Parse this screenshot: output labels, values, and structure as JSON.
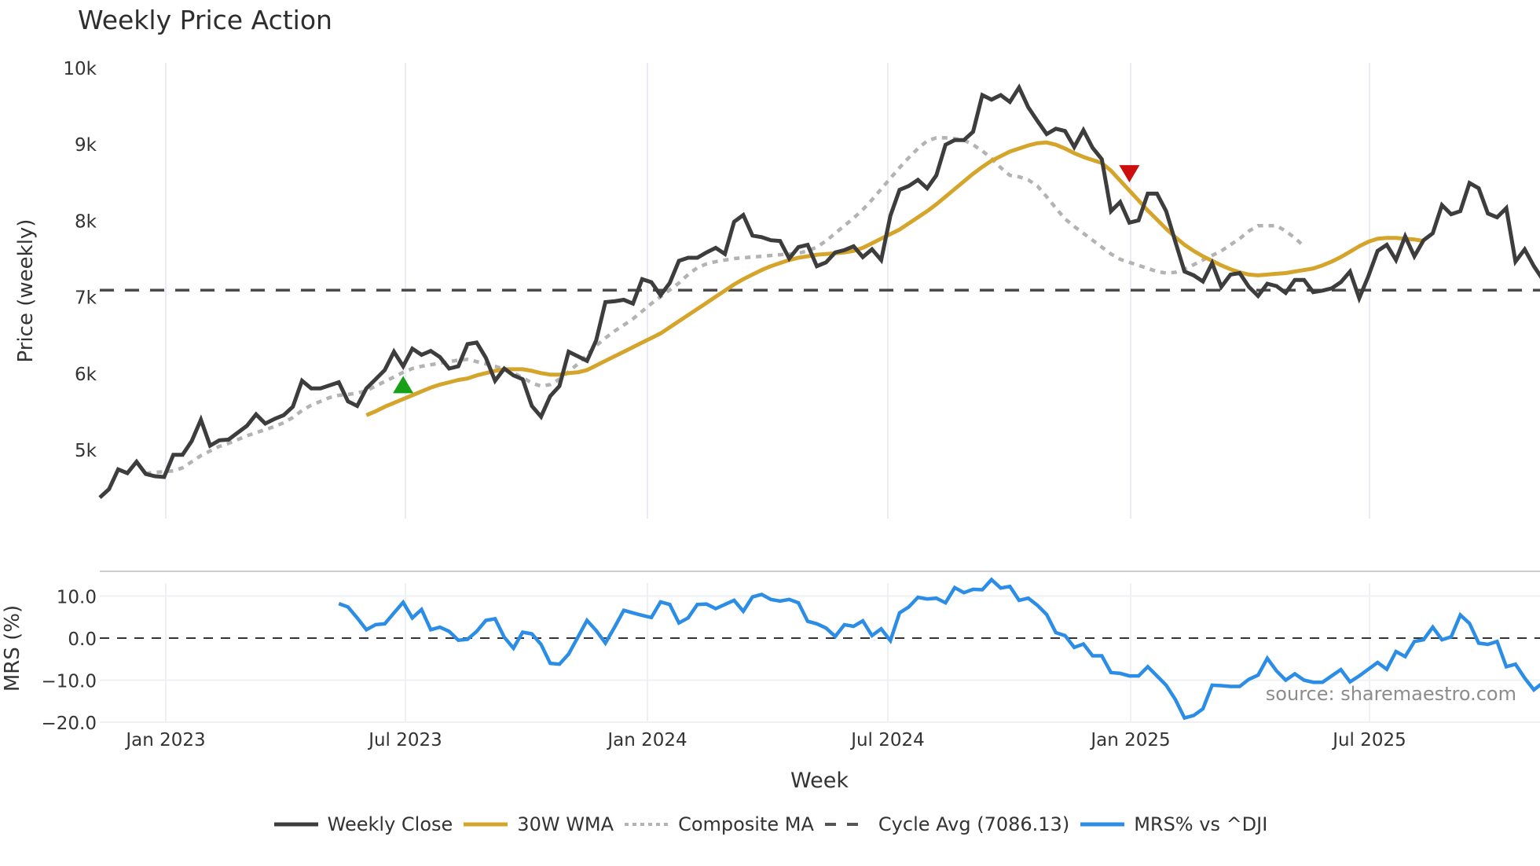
{
  "title": "Weekly Price Action",
  "price_panel": {
    "ylabel": "Price (weekly)",
    "yticks": [
      "10k",
      "9k",
      "8k",
      "7k",
      "6k",
      "5k"
    ],
    "ytick_values": [
      10000,
      9000,
      8000,
      7000,
      6000,
      5000
    ]
  },
  "mrs_panel": {
    "ylabel": "MRS (%)",
    "yticks": [
      "10.0",
      "0.0",
      "−10.0",
      "−20.0"
    ],
    "ytick_values": [
      10,
      0,
      -10,
      -20
    ]
  },
  "xaxis": {
    "label": "Week",
    "ticks": [
      "Jan 2023",
      "Jul 2023",
      "Jan 2024",
      "Jul 2024",
      "Jan 2025",
      "Jul 2025"
    ]
  },
  "watermark": "source: sharemaestro.com",
  "legend": [
    {
      "label": "Weekly Close",
      "color": "#3d3d3d",
      "style": "solid"
    },
    {
      "label": "30W WMA",
      "color": "#d4a52a",
      "style": "solid"
    },
    {
      "label": "Composite MA",
      "color": "#b3b3b3",
      "style": "dotted"
    },
    {
      "label": "Cycle Avg (7086.13)",
      "color": "#555555",
      "style": "dashed"
    },
    {
      "label": "MRS% vs ^DJI",
      "color": "#2b8de6",
      "style": "solid"
    }
  ],
  "colors": {
    "close": "#3d3d3d",
    "wma": "#d4a52a",
    "composite": "#b3b3b3",
    "cycle": "#4a4a4a",
    "mrs": "#2b8de6",
    "buy_marker": "#17a017",
    "sell_marker": "#cc0e0e",
    "grid": "#e9ecf1"
  },
  "chart_data": [
    {
      "type": "line",
      "title": "Weekly Price Action",
      "xlabel": "Week",
      "ylabel": "Price (weekly)",
      "ylim": [
        4300,
        10200
      ],
      "x_tick_labels": [
        "Jan 2023",
        "Jul 2023",
        "Jan 2024",
        "Jul 2024",
        "Jan 2025",
        "Jul 2025"
      ],
      "grid": true,
      "legend_position": "bottom",
      "x_start": "2022-11-07",
      "x_step_weeks": 1,
      "series": [
        {
          "name": "Weekly Close",
          "values": [
            4370,
            4480,
            4740,
            4690,
            4840,
            4680,
            4650,
            4640,
            4930,
            4930,
            5110,
            5390,
            5050,
            5120,
            5130,
            5220,
            5310,
            5460,
            5340,
            5400,
            5450,
            5560,
            5900,
            5800,
            5800,
            5840,
            5880,
            5630,
            5570,
            5800,
            5920,
            6040,
            6280,
            6090,
            6320,
            6240,
            6290,
            6210,
            6060,
            6090,
            6380,
            6400,
            6200,
            5900,
            6060,
            5970,
            5920,
            5570,
            5430,
            5700,
            5830,
            6280,
            6220,
            6160,
            6430,
            6930,
            6940,
            6960,
            6910,
            7230,
            7190,
            7020,
            7180,
            7470,
            7510,
            7510,
            7580,
            7640,
            7560,
            7980,
            8070,
            7800,
            7780,
            7740,
            7730,
            7500,
            7650,
            7680,
            7400,
            7450,
            7580,
            7610,
            7660,
            7520,
            7620,
            7480,
            8060,
            8400,
            8450,
            8530,
            8420,
            8590,
            8990,
            9050,
            9050,
            9160,
            9640,
            9580,
            9640,
            9550,
            9740,
            9480,
            9300,
            9130,
            9200,
            9170,
            8960,
            9180,
            8950,
            8800,
            8120,
            8240,
            7970,
            8000,
            8350,
            8350,
            8120,
            7720,
            7330,
            7280,
            7200,
            7440,
            7130,
            7290,
            7310,
            7130,
            7010,
            7170,
            7140,
            7050,
            7220,
            7220,
            7060,
            7080,
            7110,
            7190,
            7330,
            6980,
            7270,
            7600,
            7680,
            7480,
            7790,
            7530,
            7740,
            7830,
            8200,
            8080,
            8120,
            8490,
            8420,
            8090,
            8040,
            8160,
            7460,
            7620,
            7400,
            7220,
            7240
          ]
        },
        {
          "name": "30W WMA",
          "values": [
            null,
            null,
            null,
            null,
            null,
            null,
            null,
            null,
            null,
            null,
            null,
            null,
            null,
            null,
            null,
            null,
            null,
            null,
            null,
            null,
            null,
            null,
            null,
            null,
            null,
            null,
            null,
            null,
            null,
            5450,
            5500,
            5560,
            5610,
            5660,
            5710,
            5760,
            5810,
            5850,
            5880,
            5910,
            5930,
            5970,
            6000,
            6030,
            6050,
            6050,
            6050,
            6030,
            6000,
            5980,
            5980,
            6000,
            6010,
            6040,
            6100,
            6160,
            6220,
            6280,
            6340,
            6400,
            6460,
            6520,
            6600,
            6680,
            6760,
            6840,
            6920,
            7000,
            7080,
            7160,
            7230,
            7290,
            7350,
            7400,
            7440,
            7480,
            7510,
            7530,
            7550,
            7560,
            7570,
            7580,
            7600,
            7640,
            7700,
            7760,
            7820,
            7880,
            7960,
            8040,
            8120,
            8210,
            8310,
            8410,
            8510,
            8610,
            8700,
            8780,
            8840,
            8900,
            8940,
            8980,
            9010,
            9020,
            8990,
            8940,
            8880,
            8830,
            8790,
            8750,
            8650,
            8520,
            8390,
            8260,
            8130,
            8010,
            7890,
            7780,
            7680,
            7600,
            7530,
            7470,
            7410,
            7360,
            7320,
            7290,
            7280,
            7290,
            7300,
            7310,
            7330,
            7350,
            7370,
            7410,
            7460,
            7520,
            7590,
            7660,
            7720,
            7760,
            7770,
            7770,
            7760,
            7750,
            7730
          ]
        },
        {
          "name": "Composite MA",
          "values": [
            null,
            null,
            null,
            null,
            null,
            4690,
            4700,
            4710,
            4720,
            4760,
            4840,
            4920,
            4980,
            5040,
            5080,
            5130,
            5180,
            5220,
            5260,
            5300,
            5350,
            5420,
            5510,
            5580,
            5630,
            5680,
            5710,
            5720,
            5740,
            5770,
            5830,
            5890,
            5950,
            6010,
            6060,
            6090,
            6110,
            6130,
            6150,
            6170,
            6180,
            6150,
            6120,
            6090,
            6050,
            6000,
            5940,
            5870,
            5830,
            5850,
            5920,
            6020,
            6120,
            6240,
            6360,
            6460,
            6550,
            6630,
            6710,
            6810,
            6910,
            7000,
            7090,
            7180,
            7290,
            7380,
            7430,
            7460,
            7480,
            7500,
            7510,
            7520,
            7530,
            7540,
            7550,
            7560,
            7570,
            7600,
            7650,
            7730,
            7830,
            7930,
            8030,
            8140,
            8270,
            8410,
            8550,
            8690,
            8820,
            8940,
            9040,
            9080,
            9080,
            9070,
            9050,
            8990,
            8910,
            8810,
            8690,
            8590,
            8570,
            8530,
            8450,
            8310,
            8160,
            8020,
            7920,
            7830,
            7740,
            7650,
            7560,
            7490,
            7450,
            7410,
            7370,
            7330,
            7310,
            7320,
            7360,
            7420,
            7480,
            7540,
            7600,
            7680,
            7760,
            7860,
            7930,
            7930,
            7930,
            7860,
            7770,
            7660
          ]
        }
      ],
      "horizontal_lines": [
        {
          "name": "Cycle Avg",
          "value": 7086.13,
          "style": "dashed"
        }
      ],
      "markers": [
        {
          "type": "buy",
          "shape": "triangle-up",
          "week_index": 33,
          "value": 5830,
          "color": "#17a017"
        },
        {
          "type": "sell",
          "shape": "triangle-down",
          "week_index": 112,
          "value": 8630,
          "color": "#cc0e0e"
        }
      ]
    },
    {
      "type": "line",
      "xlabel": "Week",
      "ylabel": "MRS (%)",
      "ylim": [
        -21,
        15
      ],
      "grid": true,
      "reference_line": {
        "value": 0,
        "style": "dashed"
      },
      "series": [
        {
          "name": "MRS% vs ^DJI",
          "start_week_index": 26,
          "values": [
            8.2,
            7.4,
            4.8,
            2.0,
            3.2,
            3.4,
            6.0,
            8.5,
            4.8,
            6.8,
            2.0,
            2.6,
            1.6,
            -0.5,
            -0.3,
            1.6,
            4.2,
            4.6,
            0.2,
            -2.4,
            1.4,
            1.0,
            -1.5,
            -6.0,
            -6.2,
            -3.8,
            0.2,
            4.2,
            1.8,
            -1.2,
            2.6,
            6.6,
            6.0,
            5.4,
            4.9,
            8.6,
            8.0,
            3.6,
            4.8,
            8.0,
            8.1,
            7.0,
            8.0,
            9.0,
            6.4,
            9.8,
            10.4,
            9.2,
            8.8,
            9.2,
            8.4,
            4.0,
            3.4,
            2.4,
            0.4,
            3.2,
            2.8,
            4.1,
            0.6,
            2.2,
            -0.6,
            6.0,
            7.4,
            9.7,
            9.3,
            9.5,
            8.4,
            12.0,
            10.8,
            11.6,
            11.5,
            13.9,
            11.9,
            12.3,
            9.0,
            9.5,
            7.8,
            5.6,
            1.3,
            0.6,
            -2.2,
            -1.4,
            -4.2,
            -4.2,
            -8.2,
            -8.4,
            -9.0,
            -9.0,
            -6.8,
            -9.0,
            -11.2,
            -14.6,
            -19.0,
            -18.4,
            -16.8,
            -11.2,
            -11.3,
            -11.5,
            -11.5,
            -9.8,
            -8.8,
            -4.8,
            -7.8,
            -10.0,
            -8.5,
            -10.0,
            -10.5,
            -10.5,
            -9.0,
            -7.5,
            -10.4,
            -9.0,
            -7.4,
            -5.8,
            -7.4,
            -3.2,
            -4.4,
            -0.8,
            -0.4,
            2.6,
            -0.4,
            0.3,
            5.5,
            3.5,
            -1.2,
            -1.5,
            -0.8,
            -6.8,
            -6.2,
            -9.5,
            -12.3,
            -10.6
          ]
        }
      ]
    }
  ]
}
